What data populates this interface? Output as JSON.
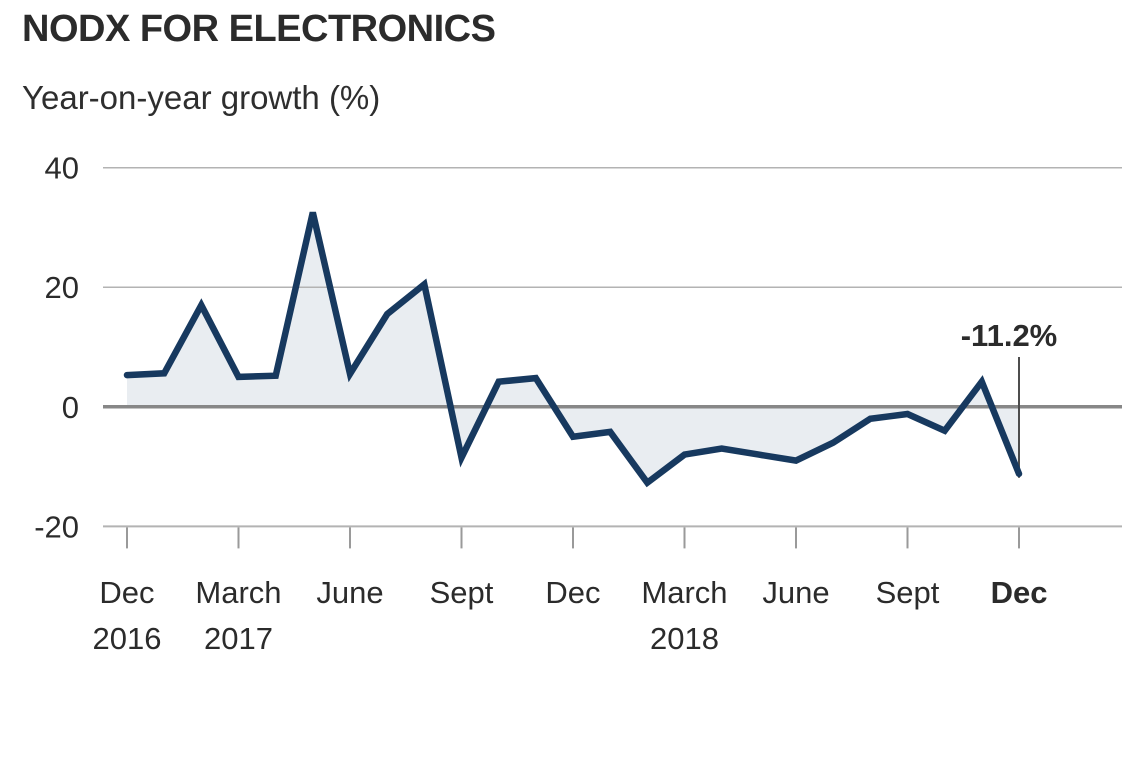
{
  "header": {
    "title": "NODX FOR ELECTRONICS",
    "subtitle": "Year-on-year growth (%)"
  },
  "colors": {
    "line": "#17395f",
    "fill": "#e9edf1",
    "grid": "#b3b3b3",
    "zero_line": "#878787",
    "baseline": "#b3b3b3",
    "tick": "#9a9a9a",
    "text": "#2b2b2b",
    "annotation_line": "#4d4d4d"
  },
  "chart_data": {
    "type": "area",
    "title": "NODX FOR ELECTRONICS",
    "subtitle": "Year-on-year growth (%)",
    "ylabel": "Year-on-year growth (%)",
    "xlabel": "",
    "ylim": [
      -20,
      40
    ],
    "yticks": [
      40,
      20,
      0,
      -20
    ],
    "grid": "horizontal",
    "legend": "none",
    "x": [
      "Dec 2016",
      "Jan 2017",
      "Feb 2017",
      "Mar 2017",
      "Apr 2017",
      "May 2017",
      "Jun 2017",
      "Jul 2017",
      "Aug 2017",
      "Sep 2017",
      "Oct 2017",
      "Nov 2017",
      "Dec 2017",
      "Jan 2018",
      "Feb 2018",
      "Mar 2018",
      "Apr 2018",
      "May 2018",
      "Jun 2018",
      "Jul 2018",
      "Aug 2018",
      "Sep 2018",
      "Oct 2018",
      "Nov 2018",
      "Dec 2018"
    ],
    "values": [
      5.3,
      5.6,
      17,
      5,
      5.2,
      32.5,
      5.5,
      15.5,
      20.5,
      -8.5,
      4.2,
      4.8,
      -5,
      -4.2,
      -12.7,
      -8,
      -7,
      -8,
      -9,
      -6,
      -2,
      -1.2,
      -4,
      4.2,
      -11.2
    ],
    "xticks": [
      {
        "label": "Dec",
        "year": "2016",
        "bold": false
      },
      {
        "label": "March",
        "year": "2017",
        "bold": false
      },
      {
        "label": "June",
        "year": "",
        "bold": false
      },
      {
        "label": "Sept",
        "year": "",
        "bold": false
      },
      {
        "label": "Dec",
        "year": "",
        "bold": false
      },
      {
        "label": "March",
        "year": "2018",
        "bold": false
      },
      {
        "label": "June",
        "year": "",
        "bold": false
      },
      {
        "label": "Sept",
        "year": "",
        "bold": false
      },
      {
        "label": "Dec",
        "year": "",
        "bold": true
      }
    ],
    "xtick_every_n_points": 3,
    "annotation": {
      "text": "-11.2%",
      "point": "Dec 2018",
      "point_index": 24,
      "value": -11.2
    }
  }
}
